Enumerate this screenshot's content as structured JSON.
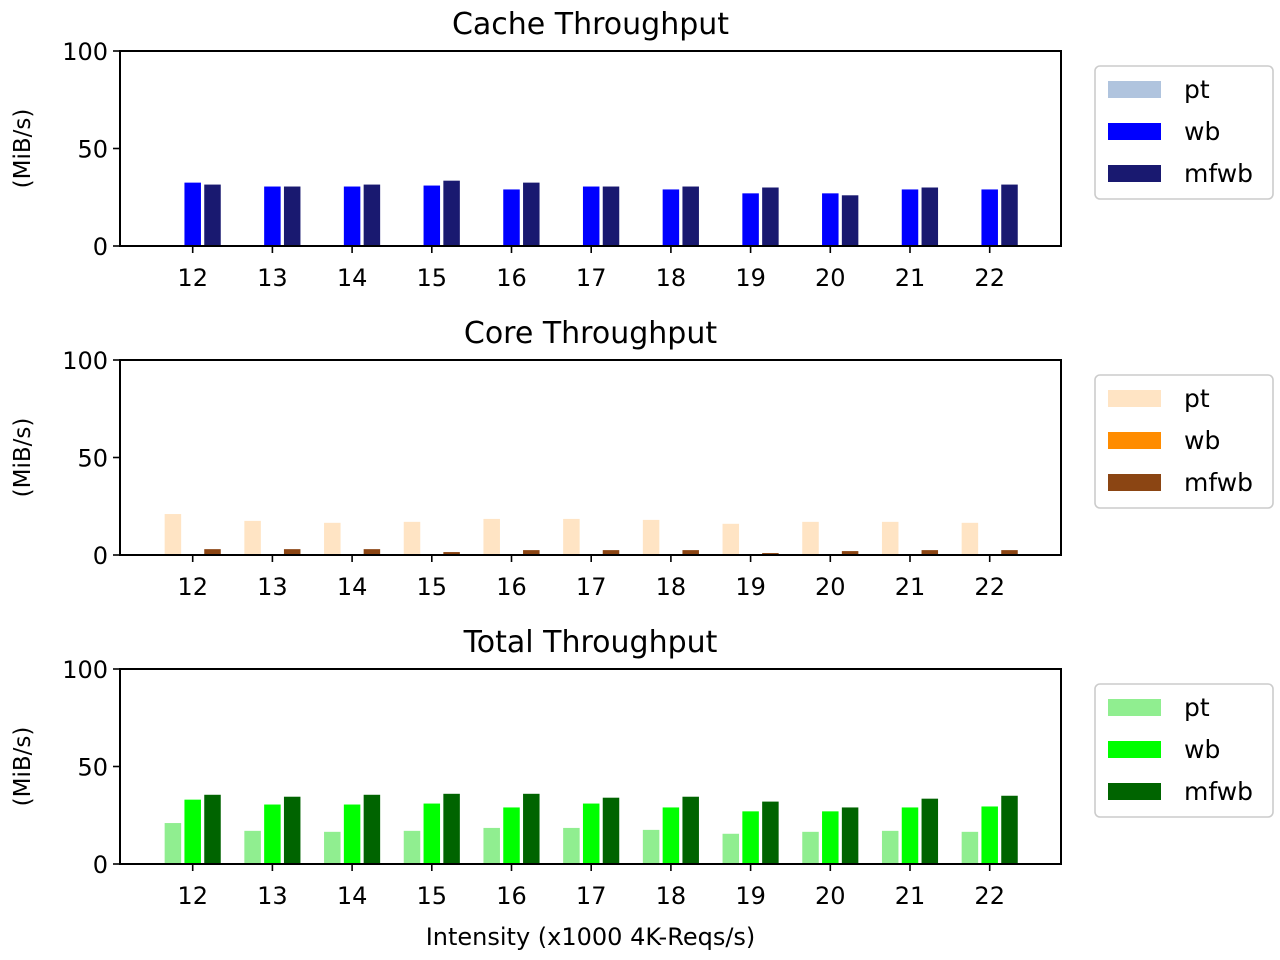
{
  "chart_data": [
    {
      "type": "bar",
      "title": "Cache Throughput",
      "ylabel": "(MiB/s)",
      "xlabel": "",
      "ylim": [
        0,
        100
      ],
      "yticks": [
        0,
        50,
        100
      ],
      "categories": [
        "12",
        "13",
        "14",
        "15",
        "16",
        "17",
        "18",
        "19",
        "20",
        "21",
        "22"
      ],
      "legend_position": "right",
      "series": [
        {
          "name": "pt",
          "color": "#b0c4de",
          "values": [
            0,
            0,
            0,
            0,
            0,
            0,
            0,
            0,
            0,
            0,
            0
          ]
        },
        {
          "name": "wb",
          "color": "#0000ff",
          "values": [
            32.5,
            30.5,
            30.5,
            31,
            29,
            30.5,
            29,
            27,
            27,
            29,
            29
          ]
        },
        {
          "name": "mfwb",
          "color": "#191970",
          "values": [
            31.5,
            30.5,
            31.5,
            33.5,
            32.5,
            30.5,
            30.5,
            30,
            26,
            30,
            31.5
          ]
        }
      ]
    },
    {
      "type": "bar",
      "title": "Core Throughput",
      "ylabel": "(MiB/s)",
      "xlabel": "",
      "ylim": [
        0,
        100
      ],
      "yticks": [
        0,
        50,
        100
      ],
      "categories": [
        "12",
        "13",
        "14",
        "15",
        "16",
        "17",
        "18",
        "19",
        "20",
        "21",
        "22"
      ],
      "legend_position": "right",
      "series": [
        {
          "name": "pt",
          "color": "#ffe4c4",
          "values": [
            21,
            17.5,
            16.5,
            17,
            18.5,
            18.5,
            18,
            16,
            17,
            17,
            16.5
          ]
        },
        {
          "name": "wb",
          "color": "#ff8c00",
          "values": [
            0,
            0,
            0,
            0,
            0,
            0,
            0,
            0,
            0,
            0,
            0
          ]
        },
        {
          "name": "mfwb",
          "color": "#8b4513",
          "values": [
            3,
            3,
            3,
            1.5,
            2.5,
            2.5,
            2.5,
            1,
            2,
            2.5,
            2.5
          ]
        }
      ]
    },
    {
      "type": "bar",
      "title": "Total Throughput",
      "ylabel": "(MiB/s)",
      "xlabel": "Intensity (x1000 4K-Reqs/s)",
      "ylim": [
        0,
        100
      ],
      "yticks": [
        0,
        50,
        100
      ],
      "categories": [
        "12",
        "13",
        "14",
        "15",
        "16",
        "17",
        "18",
        "19",
        "20",
        "21",
        "22"
      ],
      "legend_position": "right",
      "series": [
        {
          "name": "pt",
          "color": "#90ee90",
          "values": [
            21,
            17,
            16.5,
            17,
            18.5,
            18.5,
            17.5,
            15.5,
            16.5,
            17,
            16.5
          ]
        },
        {
          "name": "wb",
          "color": "#00ff00",
          "values": [
            33,
            30.5,
            30.5,
            31,
            29,
            31,
            29,
            27,
            27,
            29,
            29.5
          ]
        },
        {
          "name": "mfwb",
          "color": "#006400",
          "values": [
            35.5,
            34.5,
            35.5,
            36,
            36,
            34,
            34.5,
            32,
            29,
            33.5,
            35
          ]
        }
      ]
    }
  ]
}
